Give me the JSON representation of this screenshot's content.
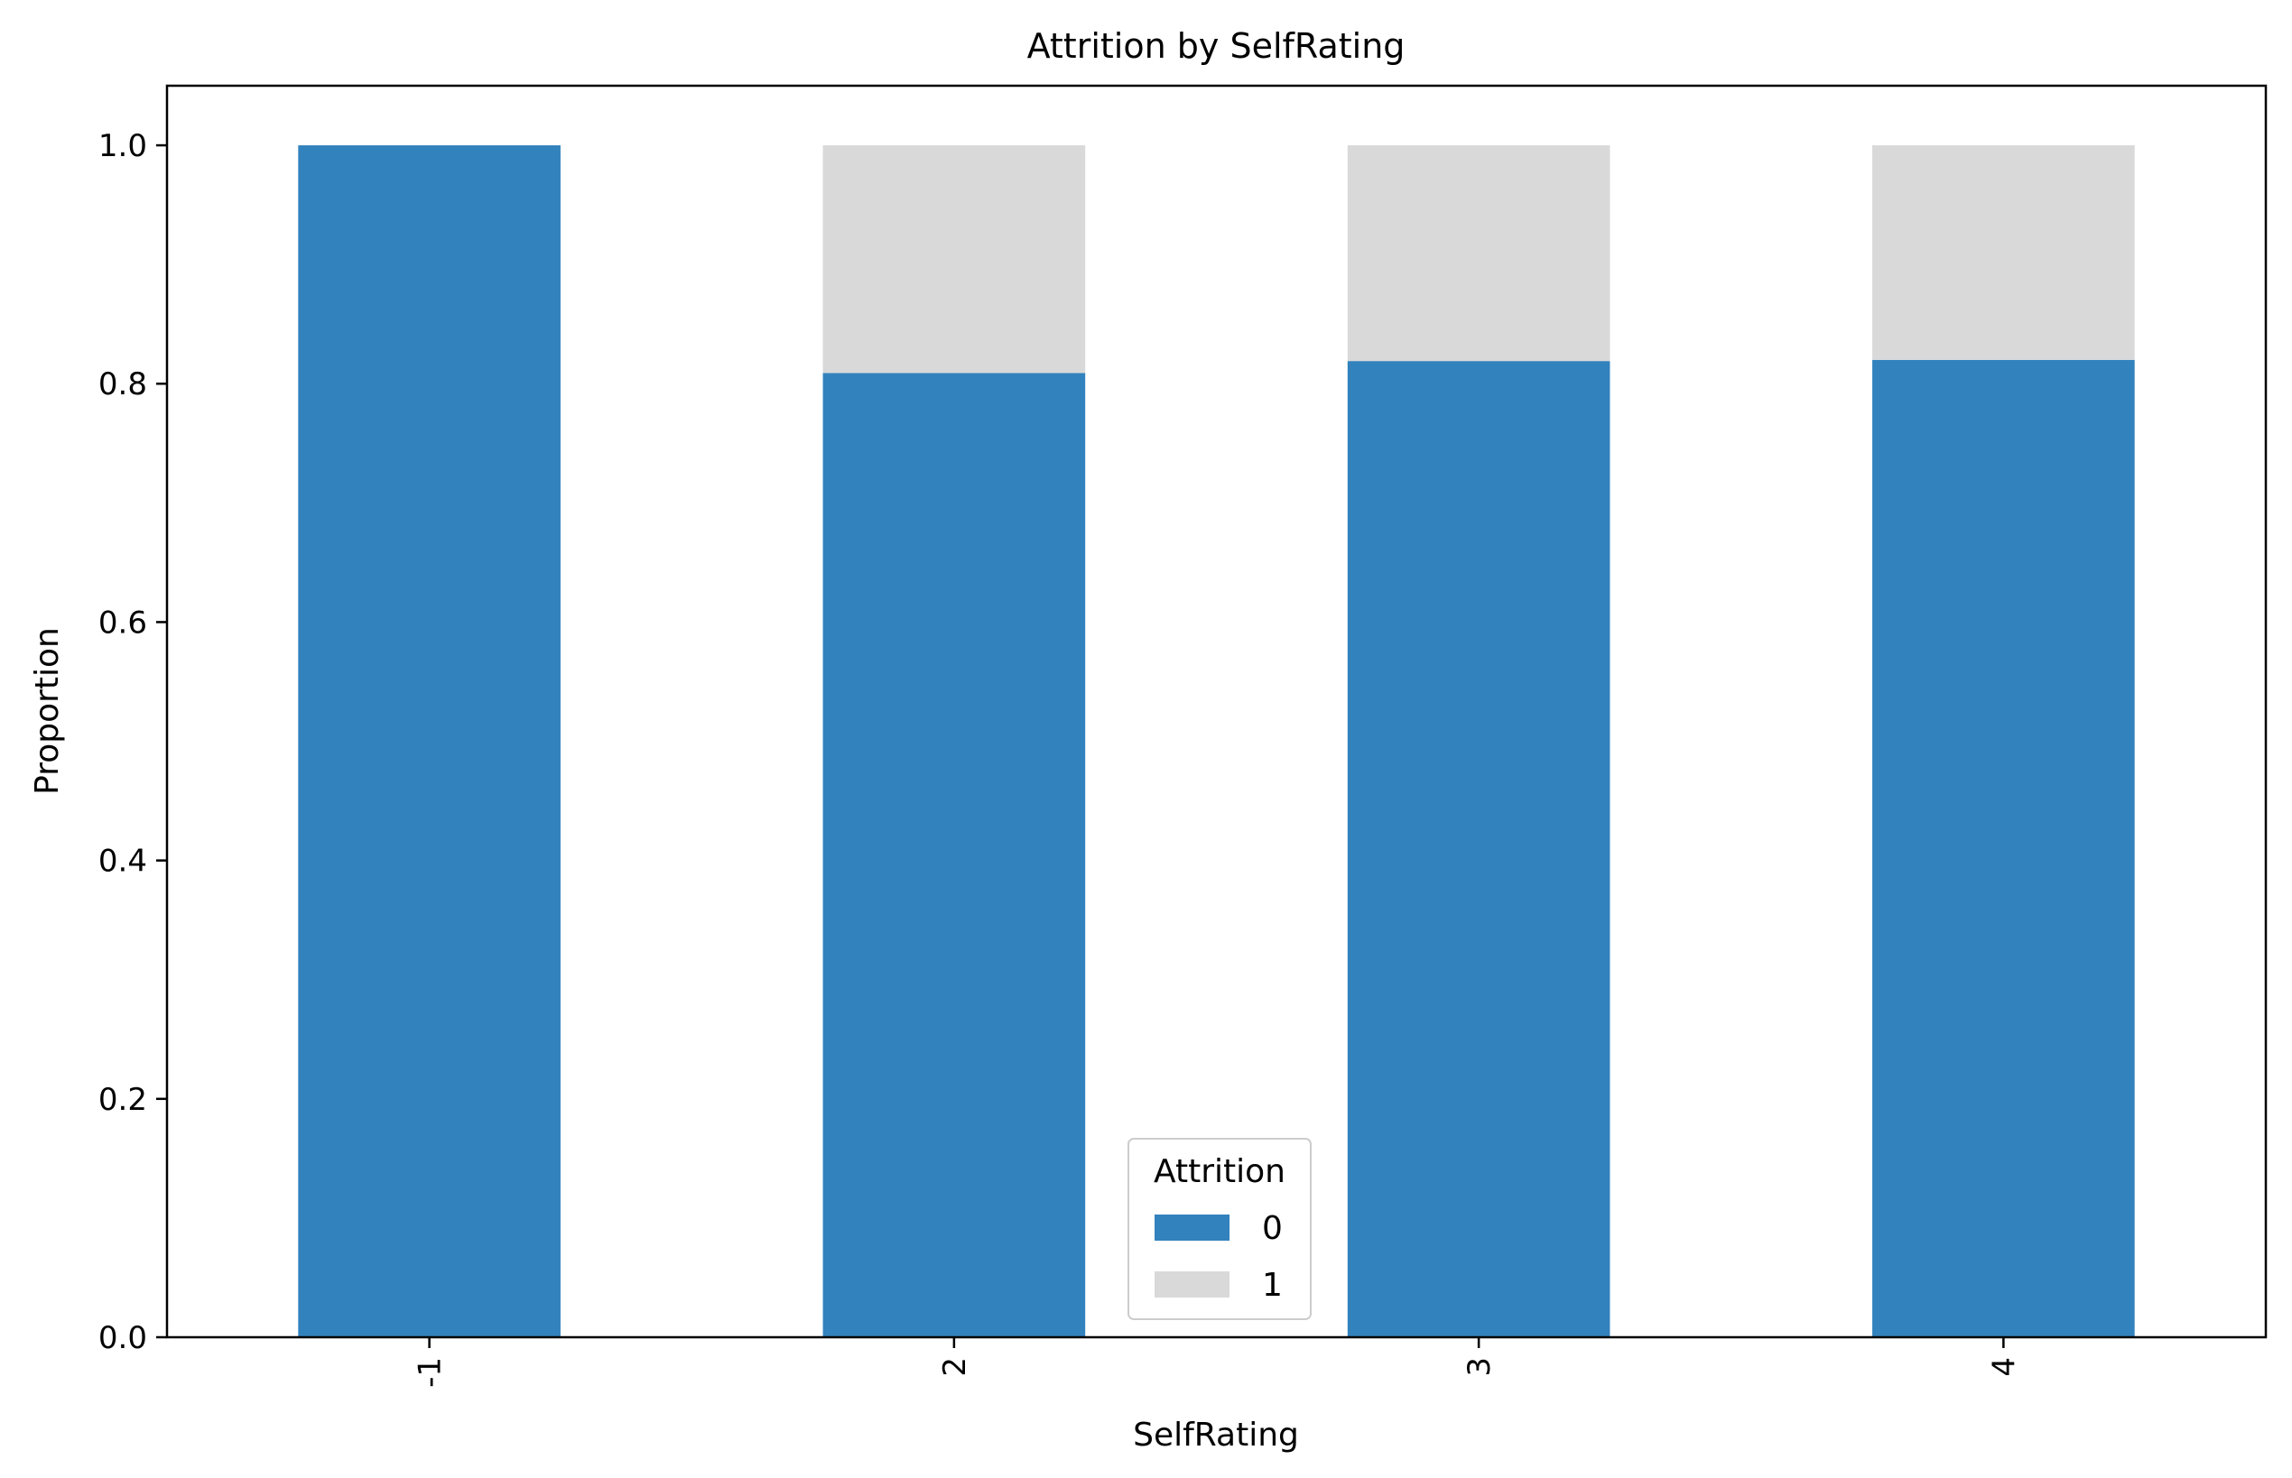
{
  "chart_data": {
    "type": "bar",
    "stacked": true,
    "title": "Attrition by SelfRating",
    "xlabel": "SelfRating",
    "ylabel": "Proportion",
    "categories": [
      "-1",
      "2",
      "3",
      "4"
    ],
    "series": [
      {
        "name": "0",
        "color": "#3282bd",
        "values": [
          1.0,
          0.809,
          0.819,
          0.82
        ]
      },
      {
        "name": "1",
        "color": "#d9d9d9",
        "values": [
          0.0,
          0.191,
          0.181,
          0.18
        ]
      }
    ],
    "ylim": [
      0,
      1.05
    ],
    "yticks": [
      "0.0",
      "0.2",
      "0.4",
      "0.6",
      "0.8",
      "1.0"
    ],
    "grid": false,
    "legend": {
      "title": "Attrition",
      "position": "bottom-center"
    }
  }
}
